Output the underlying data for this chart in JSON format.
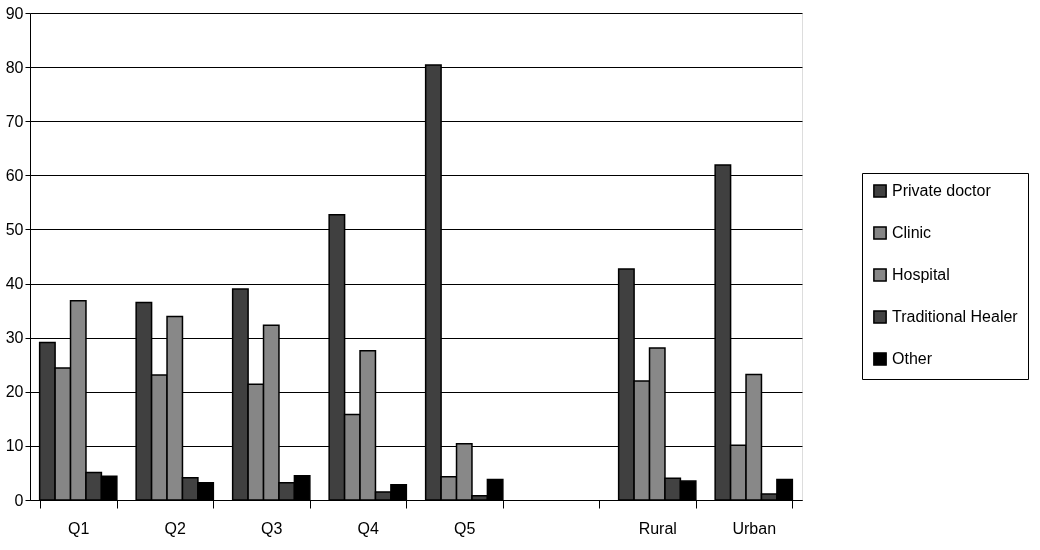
{
  "chart_data": {
    "type": "bar",
    "categories": [
      "Q1",
      "Q2",
      "Q3",
      "Q4",
      "Q5",
      null,
      "Rural",
      "Urban"
    ],
    "series": [
      {
        "name": "Private doctor",
        "color": "#404040",
        "values": [
          29.1,
          36.5,
          39.0,
          52.7,
          80.4,
          null,
          42.7,
          61.9
        ]
      },
      {
        "name": "Clinic",
        "color": "#868686",
        "values": [
          24.4,
          23.1,
          21.4,
          15.8,
          4.3,
          null,
          22.0,
          10.1
        ]
      },
      {
        "name": "Hospital",
        "color": "#888888",
        "values": [
          36.8,
          33.9,
          32.3,
          27.6,
          10.4,
          null,
          28.1,
          23.2
        ]
      },
      {
        "name": "Traditional Healer",
        "color": "#424242",
        "values": [
          5.1,
          4.1,
          3.2,
          1.5,
          0.8,
          null,
          4.0,
          1.1
        ]
      },
      {
        "name": "Other",
        "color": "#000000",
        "values": [
          4.4,
          3.2,
          4.5,
          2.8,
          3.8,
          null,
          3.5,
          3.8
        ]
      }
    ],
    "ylim": [
      0,
      90
    ],
    "yticks": [
      0,
      10,
      20,
      30,
      40,
      50,
      60,
      70,
      80,
      90
    ],
    "grid": "y",
    "legend": "right"
  }
}
